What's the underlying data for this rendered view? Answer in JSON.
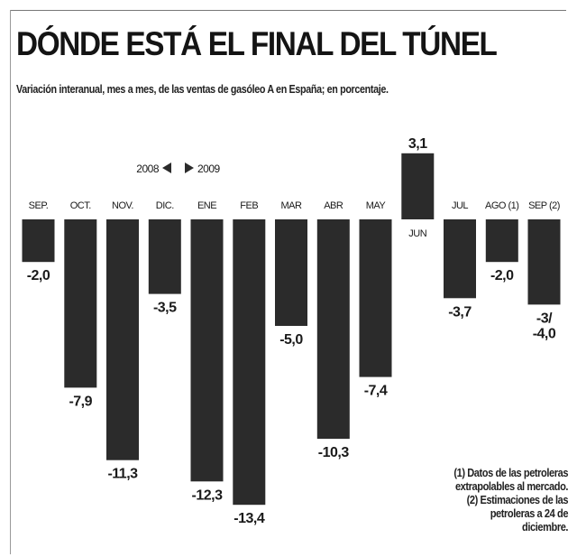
{
  "title": "DÓNDE ESTÁ EL FINAL DEL TÚNEL",
  "subtitle": "Variación interanual, mes a mes, de las ventas de gasóleo A en España; en porcentaje.",
  "year_marker": {
    "left": "2008",
    "right": "2009"
  },
  "notes": [
    "(1) Datos de las petroleras",
    "extrapolables al mercado.",
    "(2) Estimaciones de las",
    "petroleras a 24 de",
    "diciembre."
  ],
  "colors": {
    "bar": "#2b2b2b",
    "text": "#1a1a1a"
  },
  "chart_data": {
    "type": "bar",
    "title": "DÓNDE ESTÁ EL FINAL DEL TÚNEL",
    "subtitle": "Variación interanual, mes a mes, de las ventas de gasóleo A en España; en porcentaje.",
    "categories": [
      "SEP.",
      "OCT.",
      "NOV.",
      "DIC.",
      "ENE",
      "FEB",
      "MAR",
      "ABR",
      "MAY",
      "JUN",
      "JUL",
      "AGO (1)",
      "SEP (2)"
    ],
    "values": [
      -2.0,
      -7.9,
      -11.3,
      -3.5,
      -12.3,
      -13.4,
      -5.0,
      -10.3,
      -7.4,
      3.1,
      -3.7,
      -2.0,
      -4.0
    ],
    "value_labels": [
      "-2,0",
      "-7,9",
      "-11,3",
      "-3,5",
      "-12,3",
      "-13,4",
      "-5,0",
      "-10,3",
      "-7,4",
      "3,1",
      "-3,7",
      "-2,0",
      "-3/\n-4,0"
    ],
    "xlabel": "",
    "ylabel": "",
    "ylim": [
      -13.4,
      3.1
    ],
    "grid": false,
    "legend": "none"
  }
}
